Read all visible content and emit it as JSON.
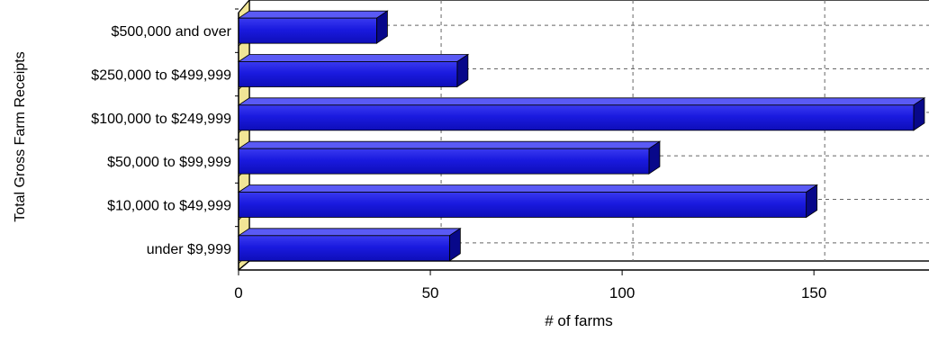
{
  "chart_data": {
    "type": "bar",
    "orientation": "horizontal",
    "title": "",
    "xlabel": "# of farms",
    "ylabel": "Total Gross Farm Receipts",
    "categories": [
      "$500,000 and over",
      "$250,000 to $499,999",
      "$100,000 to $249,999",
      "$50,000 to $99,999",
      "$10,000 to $49,999",
      "under $9,999"
    ],
    "values": [
      36,
      57,
      176,
      107,
      148,
      55
    ],
    "xlim": [
      0,
      180
    ],
    "xticks": [
      0,
      50,
      100,
      150
    ],
    "grid": true,
    "legend": "none",
    "bar_color": "#1a1adf",
    "bar_side_color": "#08088a",
    "bar_top_color": "#5a5af5",
    "floor_color": "#f1e596"
  }
}
